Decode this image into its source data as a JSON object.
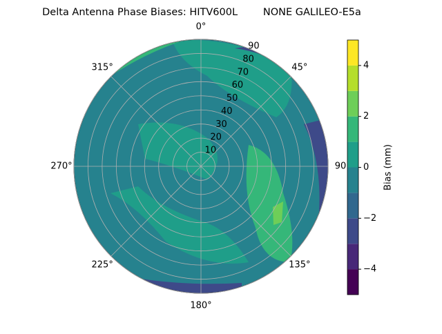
{
  "chart_data": {
    "type": "polar-contour",
    "title": "Delta Antenna Phase Biases: HITV600L        NONE GALILEO-E5a",
    "rlim": [
      0,
      90
    ],
    "rticks": [
      10,
      20,
      30,
      40,
      50,
      60,
      70,
      80,
      90
    ],
    "thetaticks": [
      {
        "value": 0,
        "label": "0°"
      },
      {
        "value": 45,
        "label": "45°"
      },
      {
        "value": 90,
        "label": "90"
      },
      {
        "value": 135,
        "label": "135°"
      },
      {
        "value": 180,
        "label": "180°"
      },
      {
        "value": 225,
        "label": "225°"
      },
      {
        "value": 270,
        "label": "270°"
      },
      {
        "value": 315,
        "label": "315°"
      }
    ],
    "grid": true,
    "colorbar": {
      "label": "Bias (mm)",
      "levels": [
        -5,
        -4,
        -3,
        -2,
        -1,
        0,
        1,
        2,
        3,
        4,
        5
      ],
      "colors": [
        "#440154",
        "#482878",
        "#3e4a89",
        "#31688e",
        "#26828e",
        "#1f9e89",
        "#35b779",
        "#6ece58",
        "#b5de2b",
        "#fde725"
      ],
      "ticks": [
        {
          "value": -4,
          "label": "−4"
        },
        {
          "value": -2,
          "label": "−2"
        },
        0,
        2,
        4
      ]
    }
  }
}
